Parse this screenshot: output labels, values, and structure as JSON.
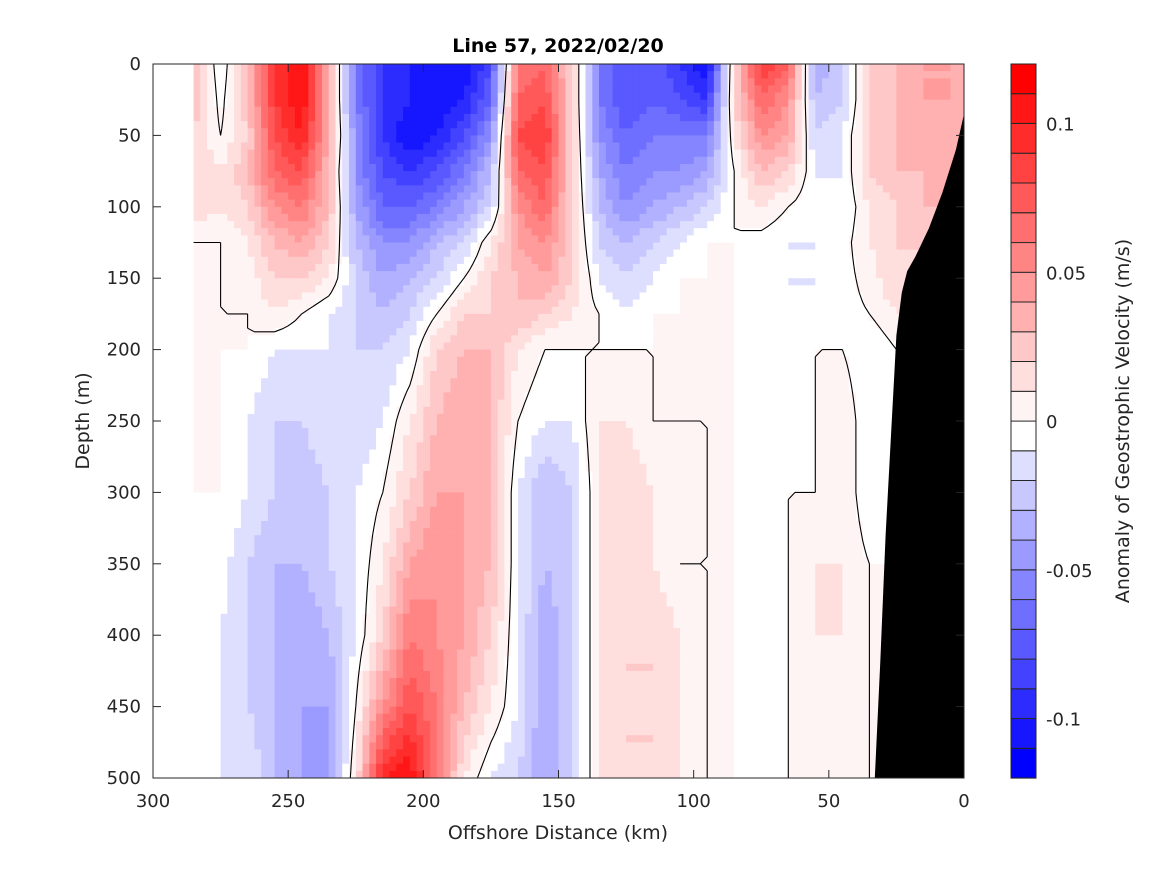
{
  "chart_data": {
    "type": "heatmap",
    "subtype": "filled-contour",
    "title": "Line 57, 2022/02/20",
    "xlabel": "Offshore Distance (km)",
    "ylabel": "Depth (m)",
    "colorbar_label": "Anomaly of Geostrophic Velocity (m/s)",
    "xlim": [
      300,
      0
    ],
    "ylim": [
      0,
      500
    ],
    "x_reversed": true,
    "y_reversed": true,
    "xticks": [
      300,
      250,
      200,
      150,
      100,
      50,
      0
    ],
    "xtick_labels": [
      "300",
      "250",
      "200",
      "150",
      "100",
      "50",
      "0"
    ],
    "yticks": [
      0,
      50,
      100,
      150,
      200,
      250,
      300,
      350,
      400,
      450,
      500
    ],
    "ytick_labels": [
      "0",
      "50",
      "100",
      "150",
      "200",
      "250",
      "300",
      "350",
      "400",
      "450",
      "500"
    ],
    "clim": [
      -0.12,
      0.12
    ],
    "contour_step": 0.01,
    "colorbar_ticks": [
      0.1,
      0.05,
      0,
      -0.05,
      -0.1
    ],
    "colorbar_tick_labels": [
      "0.1",
      "0.05",
      "0",
      "-0.05",
      "-0.1"
    ],
    "colormap": {
      "negative": "#0000ff",
      "zero": "#ffffff",
      "positive": "#ff0000"
    },
    "zero_contour_color": "#000000",
    "bathymetry_color": "#000000",
    "grid": false,
    "distance_km": [
      285,
      275,
      265,
      255,
      245,
      235,
      225,
      215,
      205,
      195,
      185,
      175,
      165,
      155,
      145,
      135,
      125,
      115,
      105,
      95,
      85,
      75,
      65,
      55,
      45,
      35,
      25,
      15,
      5,
      0
    ],
    "depth_m": [
      0,
      25,
      50,
      75,
      100,
      125,
      150,
      175,
      200,
      250,
      300,
      350,
      400,
      450,
      500
    ],
    "velocity_ms": [
      [
        0.03,
        -0.01,
        0.03,
        0.09,
        0.11,
        0.04,
        -0.06,
        -0.09,
        -0.1,
        -0.1,
        -0.11,
        -0.08,
        0.06,
        0.07,
        0.02,
        -0.06,
        -0.08,
        -0.07,
        -0.09,
        -0.11,
        0.02,
        0.09,
        0.07,
        -0.04,
        -0.02,
        0.02,
        0.03,
        0.04,
        0.04,
        0.03
      ],
      [
        0.03,
        -0.005,
        0.03,
        0.09,
        0.11,
        0.04,
        -0.06,
        -0.09,
        -0.1,
        -0.11,
        -0.1,
        -0.07,
        0.07,
        0.08,
        0.02,
        -0.06,
        -0.08,
        -0.07,
        -0.08,
        -0.09,
        0.02,
        0.07,
        0.05,
        -0.03,
        -0.02,
        0.02,
        0.03,
        0.04,
        0.04,
        0.03
      ],
      [
        0.02,
        0.0,
        0.02,
        0.08,
        0.1,
        0.04,
        -0.05,
        -0.09,
        -0.11,
        -0.1,
        -0.08,
        -0.05,
        0.08,
        0.09,
        0.02,
        -0.05,
        -0.07,
        -0.06,
        -0.06,
        -0.06,
        0.01,
        0.05,
        0.04,
        -0.02,
        -0.01,
        0.02,
        0.03,
        0.04,
        0.03,
        0.03
      ],
      [
        0.02,
        0.01,
        0.03,
        0.07,
        0.08,
        0.03,
        -0.05,
        -0.08,
        -0.09,
        -0.08,
        -0.06,
        -0.03,
        0.07,
        0.08,
        0.02,
        -0.04,
        -0.06,
        -0.05,
        -0.05,
        -0.04,
        0.0,
        0.03,
        0.02,
        -0.01,
        -0.01,
        0.02,
        0.03,
        0.03,
        0.03,
        0.03
      ],
      [
        0.02,
        0.01,
        0.02,
        0.05,
        0.06,
        0.03,
        -0.04,
        -0.07,
        -0.07,
        -0.06,
        -0.04,
        -0.02,
        0.05,
        0.07,
        0.02,
        -0.03,
        -0.05,
        -0.04,
        -0.03,
        -0.02,
        0.0,
        0.01,
        0.0,
        -0.01,
        -0.01,
        0.01,
        0.02,
        0.03,
        0.03,
        0.03
      ],
      [
        0.0,
        0.0,
        0.01,
        0.03,
        0.04,
        0.02,
        -0.03,
        -0.05,
        -0.05,
        -0.03,
        -0.02,
        0.01,
        0.04,
        0.05,
        0.02,
        -0.02,
        -0.03,
        -0.02,
        -0.01,
        0.0,
        0.0,
        -0.005,
        -0.01,
        -0.01,
        -0.005,
        0.01,
        0.02,
        0.02,
        0.02,
        0.02
      ],
      [
        0.0,
        0.0,
        0.005,
        0.02,
        0.02,
        0.01,
        -0.02,
        -0.04,
        -0.03,
        -0.02,
        0.0,
        0.02,
        0.03,
        0.04,
        0.02,
        -0.01,
        -0.02,
        -0.01,
        0.0,
        0.0,
        0.0,
        -0.005,
        -0.01,
        -0.01,
        -0.005,
        0.005,
        0.02,
        0.02,
        0.02,
        0.02
      ],
      [
        0.0,
        0.0,
        0.0,
        0.01,
        0.0,
        -0.01,
        -0.02,
        -0.03,
        -0.02,
        0.0,
        0.02,
        0.02,
        0.03,
        0.02,
        0.01,
        0.0,
        -0.01,
        0.0,
        0.0,
        0.0,
        0.0,
        -0.005,
        -0.01,
        -0.01,
        -0.005,
        0.0,
        0.01,
        0.01,
        0.01,
        0.01
      ],
      [
        0.0,
        0.0,
        0.0,
        -0.01,
        -0.01,
        -0.01,
        -0.02,
        -0.02,
        -0.01,
        0.02,
        0.03,
        0.03,
        0.01,
        0.0,
        0.0,
        0.0,
        0.0,
        0.0,
        0.0,
        0.0,
        0.0,
        -0.005,
        -0.01,
        0.0,
        0.0,
        -0.01,
        0.0,
        0.0,
        0.0,
        0.0
      ],
      [
        0.0,
        0.0,
        -0.01,
        -0.02,
        -0.02,
        -0.01,
        -0.02,
        -0.01,
        0.01,
        0.03,
        0.04,
        0.03,
        0.0,
        -0.01,
        -0.01,
        0.01,
        0.01,
        0.0,
        0.0,
        0.0,
        0.0,
        -0.01,
        -0.01,
        0.0,
        0.01,
        -0.01,
        0.0,
        0.0,
        0.0,
        0.0
      ],
      [
        0.0,
        0.0,
        -0.01,
        -0.02,
        -0.03,
        -0.02,
        -0.01,
        0.0,
        0.02,
        0.04,
        0.04,
        0.03,
        -0.01,
        -0.03,
        -0.02,
        0.01,
        0.02,
        0.01,
        0.01,
        0.0,
        0.0,
        -0.01,
        0.0,
        0.0,
        0.01,
        -0.01,
        0.0,
        0.0,
        0.0,
        0.0
      ],
      [
        0.0,
        -0.005,
        -0.02,
        -0.03,
        -0.03,
        -0.02,
        -0.01,
        0.01,
        0.04,
        0.05,
        0.04,
        0.03,
        -0.01,
        -0.03,
        -0.02,
        0.01,
        0.02,
        0.01,
        0.0,
        0.0,
        0.0,
        0.0,
        0.0,
        0.01,
        0.01,
        0.0,
        0.0,
        0.0,
        0.0,
        0.0
      ],
      [
        0.0,
        -0.01,
        -0.02,
        -0.03,
        -0.04,
        -0.03,
        -0.01,
        0.02,
        0.06,
        0.05,
        0.04,
        0.02,
        -0.01,
        -0.04,
        -0.02,
        0.01,
        0.02,
        0.02,
        0.01,
        0.0,
        0.0,
        -0.01,
        0.0,
        0.01,
        0.01,
        0.0,
        0.0,
        0.0,
        0.0,
        0.0
      ],
      [
        0.0,
        -0.01,
        -0.02,
        -0.03,
        -0.04,
        -0.04,
        0.0,
        0.05,
        0.08,
        0.06,
        0.03,
        0.01,
        -0.01,
        -0.04,
        -0.02,
        0.01,
        0.02,
        0.02,
        0.01,
        0.0,
        0.0,
        -0.005,
        0.0,
        0.005,
        0.01,
        0.0,
        0.0,
        0.0,
        0.0,
        0.0
      ],
      [
        0.0,
        -0.01,
        -0.01,
        -0.03,
        -0.04,
        -0.04,
        0.01,
        0.1,
        0.11,
        0.06,
        0.01,
        -0.01,
        -0.02,
        -0.04,
        -0.02,
        0.01,
        0.02,
        0.02,
        0.01,
        0.0,
        0.0,
        0.0,
        0.0,
        0.005,
        0.01,
        0.0,
        0.0,
        0.0,
        0.0,
        0.0
      ]
    ],
    "bathymetry": {
      "distance_km": [
        0,
        3,
        8,
        13,
        18,
        21,
        23,
        25,
        27,
        29,
        31,
        33
      ],
      "bottom_depth_m": [
        35,
        60,
        90,
        115,
        135,
        145,
        160,
        190,
        260,
        330,
        420,
        500
      ]
    }
  }
}
